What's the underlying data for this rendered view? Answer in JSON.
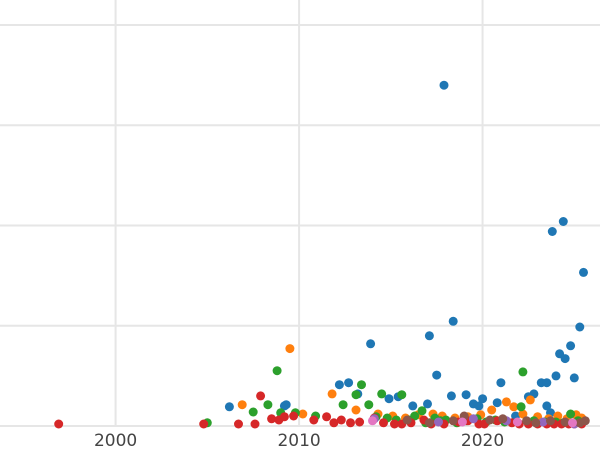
{
  "chart_data": {
    "type": "scatter",
    "title": "",
    "xlabel": "",
    "ylabel": "",
    "xlim": [
      1993.7,
      2026.4
    ],
    "ylim": [
      0,
      100
    ],
    "x_ticks": [
      2000,
      2010,
      2020
    ],
    "x_tick_labels": [
      "2000",
      "2010",
      "2020"
    ],
    "y_gridlines": [
      0,
      25,
      50,
      75,
      100
    ],
    "y_tick_labels_visible": false,
    "grid": true,
    "legend": "none",
    "colors": [
      "#1f77b4",
      "#ff7f0e",
      "#2ca02c",
      "#d62728",
      "#9467bd",
      "#8c564b",
      "#e377c2"
    ],
    "series": [
      {
        "color": "#1f77b4",
        "points": [
          [
            2006.2,
            4.8
          ],
          [
            2009.2,
            5
          ],
          [
            2009.3,
            5.3
          ],
          [
            2012.2,
            10.3
          ],
          [
            2012.7,
            10.8
          ],
          [
            2013.2,
            8
          ],
          [
            2013.9,
            20.5
          ],
          [
            2014.9,
            6.8
          ],
          [
            2015.4,
            7.3
          ],
          [
            2016.2,
            5
          ],
          [
            2017.0,
            5.5
          ],
          [
            2017.1,
            22.5
          ],
          [
            2017.5,
            12.7
          ],
          [
            2017.9,
            85
          ],
          [
            2018.3,
            7.5
          ],
          [
            2018.4,
            26.1
          ],
          [
            2019.1,
            7.8
          ],
          [
            2019.5,
            5.5
          ],
          [
            2019.8,
            5
          ],
          [
            2020.0,
            6.8
          ],
          [
            2020.8,
            5.8
          ],
          [
            2021.0,
            10.8
          ],
          [
            2022.5,
            7.3
          ],
          [
            2022.8,
            8
          ],
          [
            2023.2,
            10.8
          ],
          [
            2023.5,
            10.8
          ],
          [
            2023.5,
            5
          ],
          [
            2023.7,
            3.3
          ],
          [
            2023.8,
            48.5
          ],
          [
            2024.0,
            12.5
          ],
          [
            2024.2,
            18
          ],
          [
            2024.4,
            51
          ],
          [
            2024.5,
            16.8
          ],
          [
            2024.8,
            20
          ],
          [
            2025.0,
            12
          ],
          [
            2025.3,
            24.7
          ],
          [
            2025.5,
            38.3
          ],
          [
            2025.3,
            1.5
          ],
          [
            2021.8,
            2.5
          ]
        ]
      },
      {
        "color": "#ff7f0e",
        "points": [
          [
            2006.9,
            5.3
          ],
          [
            2009.5,
            19.3
          ],
          [
            2010.2,
            3
          ],
          [
            2011.8,
            8
          ],
          [
            2013.1,
            4
          ],
          [
            2014.3,
            3
          ],
          [
            2015.1,
            2.5
          ],
          [
            2015.8,
            2
          ],
          [
            2016.5,
            2.8
          ],
          [
            2017.3,
            3
          ],
          [
            2017.8,
            2.5
          ],
          [
            2018.5,
            2
          ],
          [
            2019.2,
            2.3
          ],
          [
            2019.9,
            2.8
          ],
          [
            2020.5,
            4
          ],
          [
            2021.3,
            6
          ],
          [
            2021.7,
            4.8
          ],
          [
            2022.2,
            3
          ],
          [
            2022.6,
            6.5
          ],
          [
            2023.0,
            2.3
          ],
          [
            2023.6,
            1.8
          ],
          [
            2024.1,
            2.5
          ],
          [
            2024.6,
            1.8
          ],
          [
            2025.1,
            2.8
          ],
          [
            2025.4,
            2
          ]
        ]
      },
      {
        "color": "#2ca02c",
        "points": [
          [
            2005.0,
            0.8
          ],
          [
            2007.5,
            3.5
          ],
          [
            2008.3,
            5.3
          ],
          [
            2008.8,
            13.8
          ],
          [
            2009.0,
            3.3
          ],
          [
            2009.8,
            3.3
          ],
          [
            2010.9,
            2.5
          ],
          [
            2012.4,
            5.3
          ],
          [
            2013.1,
            7.8
          ],
          [
            2013.4,
            10.3
          ],
          [
            2013.8,
            5.3
          ],
          [
            2014.2,
            2.3
          ],
          [
            2014.5,
            8
          ],
          [
            2014.8,
            2
          ],
          [
            2015.3,
            1.5
          ],
          [
            2015.6,
            7.8
          ],
          [
            2016.0,
            1.5
          ],
          [
            2016.3,
            2.5
          ],
          [
            2016.7,
            3.8
          ],
          [
            2016.9,
            0.8
          ],
          [
            2017.4,
            2
          ],
          [
            2017.7,
            1.3
          ],
          [
            2018.0,
            1.5
          ],
          [
            2018.6,
            0.8
          ],
          [
            2019.1,
            1.3
          ],
          [
            2019.7,
            1.8
          ],
          [
            2020.2,
            1
          ],
          [
            2020.7,
            1.5
          ],
          [
            2021.2,
            1
          ],
          [
            2022.1,
            4.8
          ],
          [
            2022.2,
            13.5
          ],
          [
            2022.8,
            1.3
          ],
          [
            2023.4,
            1
          ],
          [
            2024.0,
            1
          ],
          [
            2024.4,
            0.8
          ],
          [
            2024.8,
            3
          ],
          [
            2025.2,
            1.3
          ]
        ]
      },
      {
        "color": "#d62728",
        "points": [
          [
            1996.9,
            0
          ],
          [
            2004.8,
            0
          ],
          [
            2006.7,
            0.5
          ],
          [
            2007.6,
            0.5
          ],
          [
            2007.9,
            7.5
          ],
          [
            2008.5,
            1.8
          ],
          [
            2008.9,
            1.5
          ],
          [
            2009.2,
            2.3
          ],
          [
            2009.7,
            2.5
          ],
          [
            2010.8,
            1.5
          ],
          [
            2011.5,
            2.3
          ],
          [
            2011.9,
            0.8
          ],
          [
            2012.3,
            1.5
          ],
          [
            2012.8,
            0.8
          ],
          [
            2013.3,
            1
          ],
          [
            2014.1,
            2
          ],
          [
            2014.6,
            0.8
          ],
          [
            2015.2,
            0.5
          ],
          [
            2015.6,
            0.5
          ],
          [
            2016.1,
            0.8
          ],
          [
            2016.8,
            1.5
          ],
          [
            2017.2,
            0.5
          ],
          [
            2017.9,
            0
          ],
          [
            2018.7,
            1
          ],
          [
            2019.2,
            1.3
          ],
          [
            2019.8,
            0.5
          ],
          [
            2020.1,
            0
          ],
          [
            2020.8,
            1.3
          ],
          [
            2021.6,
            0.8
          ],
          [
            2022.0,
            0.5
          ],
          [
            2022.5,
            0.5
          ],
          [
            2023.0,
            0.5
          ],
          [
            2023.5,
            0
          ],
          [
            2023.9,
            0.3
          ],
          [
            2024.3,
            0.3
          ],
          [
            2024.7,
            0.5
          ],
          [
            2025.0,
            0.3
          ],
          [
            2025.4,
            0.3
          ]
        ]
      },
      {
        "color": "#9467bd",
        "points": [
          [
            2014.1,
            1.8
          ],
          [
            2017.6,
            1
          ],
          [
            2019.5,
            1.8
          ],
          [
            2021.3,
            1.3
          ],
          [
            2023.3,
            1
          ],
          [
            2025.0,
            0.5
          ]
        ]
      },
      {
        "color": "#8c564b",
        "points": [
          [
            2015.9,
            1.5
          ],
          [
            2017.1,
            0.8
          ],
          [
            2018.4,
            1.3
          ],
          [
            2019.0,
            2.5
          ],
          [
            2020.4,
            1.5
          ],
          [
            2021.1,
            1.8
          ],
          [
            2022.4,
            1.3
          ],
          [
            2022.9,
            0.8
          ],
          [
            2023.7,
            1.3
          ],
          [
            2024.5,
            1
          ],
          [
            2025.3,
            0.8
          ],
          [
            2025.6,
            1.3
          ]
        ]
      },
      {
        "color": "#e377c2",
        "points": [
          [
            2014.0,
            1.3
          ],
          [
            2018.9,
            1
          ],
          [
            2021.9,
            1
          ],
          [
            2024.9,
            0.8
          ]
        ]
      }
    ]
  }
}
